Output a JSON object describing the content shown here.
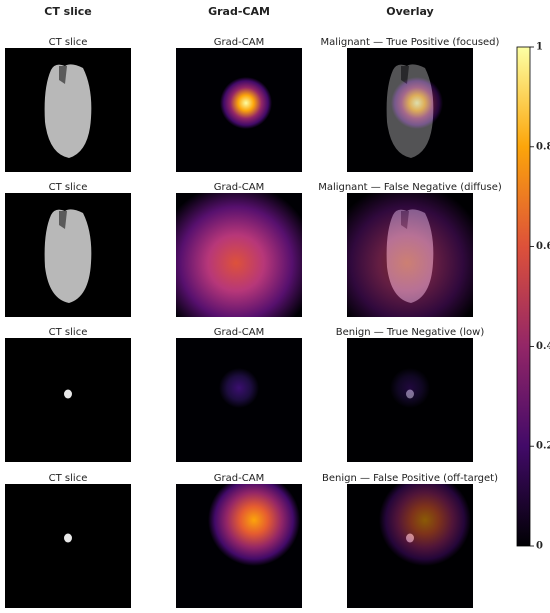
{
  "columns": [
    "CT slice",
    "Grad-CAM",
    "Overlay"
  ],
  "rows": [
    {
      "ct_title": "CT slice",
      "cam_title": "Grad-CAM",
      "overlay_title": "Malignant — True Positive (focused)"
    },
    {
      "ct_title": "CT slice",
      "cam_title": "Grad-CAM",
      "overlay_title": "Malignant — False Negative (diffuse)"
    },
    {
      "ct_title": "CT slice",
      "cam_title": "Grad-CAM",
      "overlay_title": "Benign — True Negative (low)"
    },
    {
      "ct_title": "CT slice",
      "cam_title": "Grad-CAM",
      "overlay_title": "Benign — False Positive (off-target)"
    }
  ],
  "colorbar": {
    "lim": [
      0,
      1
    ],
    "ticks": [
      0,
      0.2,
      0.4,
      0.6,
      0.8,
      1
    ]
  }
}
